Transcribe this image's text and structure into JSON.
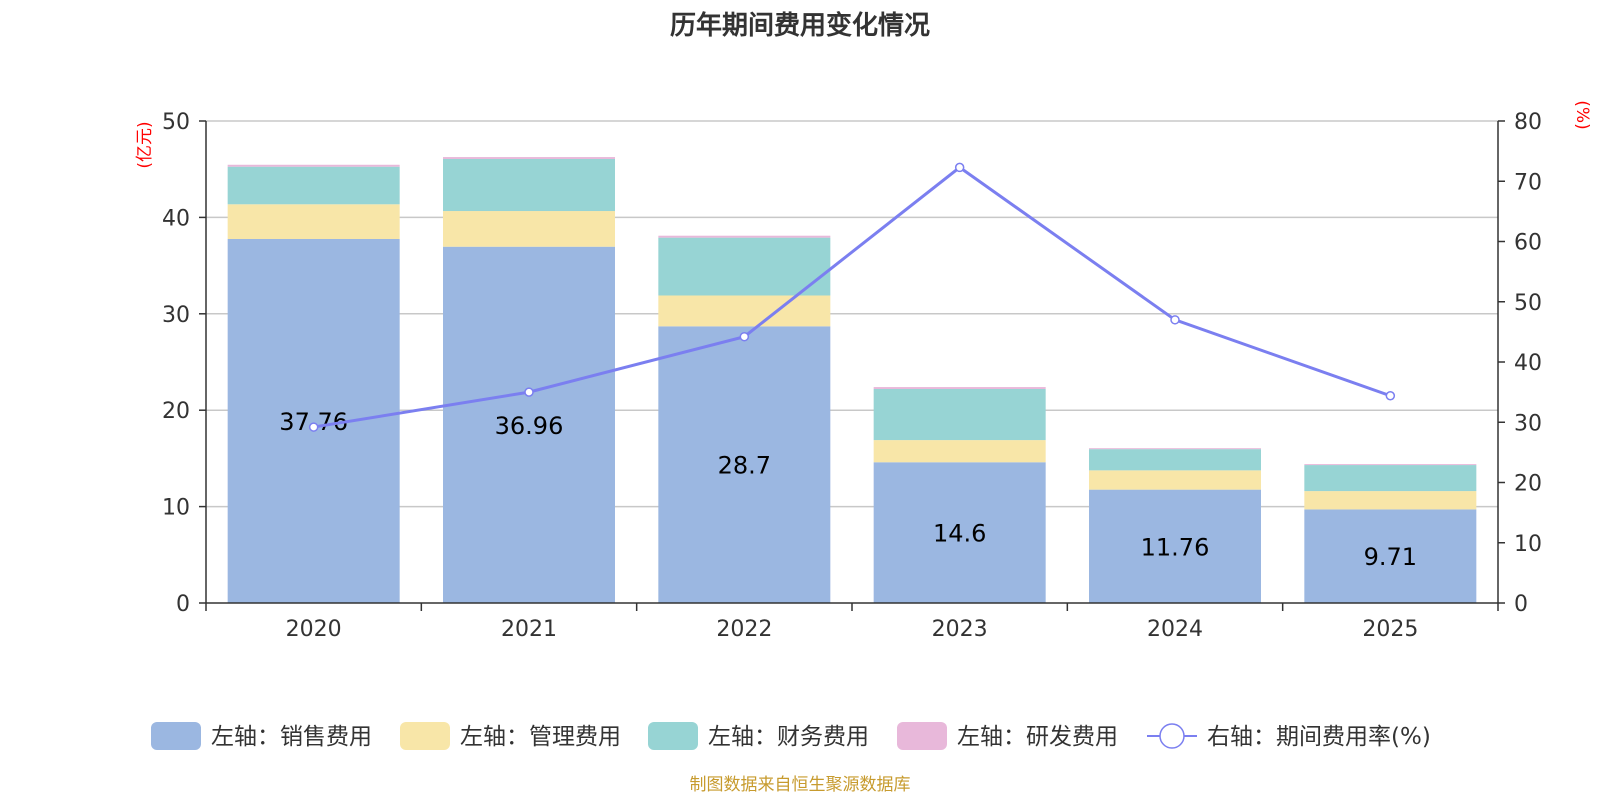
{
  "chart_data": {
    "type": "bar",
    "stacked": true,
    "title": "历年期间费用变化情况",
    "categories": [
      "2020",
      "2021",
      "2022",
      "2023",
      "2024",
      "2025"
    ],
    "left_axis": {
      "unit_label": "(亿元)",
      "ylim": [
        0,
        50
      ],
      "ticks": [
        0,
        10,
        20,
        30,
        40,
        50
      ]
    },
    "right_axis": {
      "unit_label": "(%)",
      "ylim": [
        0,
        80
      ],
      "ticks": [
        0,
        10,
        20,
        30,
        40,
        50,
        60,
        70,
        80
      ]
    },
    "series": [
      {
        "name": "左轴：销售费用",
        "type": "bar",
        "axis": "left",
        "color": "#9bb7e1",
        "values": [
          37.76,
          36.96,
          28.7,
          14.6,
          11.76,
          9.71
        ],
        "labels": [
          "37.76",
          "36.96",
          "28.7",
          "14.6",
          "11.76",
          "9.71"
        ]
      },
      {
        "name": "左轴：管理费用",
        "type": "bar",
        "axis": "left",
        "color": "#f8e6a8",
        "values": [
          3.6,
          3.7,
          3.2,
          2.3,
          2.0,
          1.9
        ]
      },
      {
        "name": "左轴：财务费用",
        "type": "bar",
        "axis": "left",
        "color": "#97d4d4",
        "values": [
          3.9,
          5.4,
          6.0,
          5.3,
          2.2,
          2.7
        ]
      },
      {
        "name": "左轴：研发费用",
        "type": "bar",
        "axis": "left",
        "color": "#e8b8da",
        "values": [
          0.2,
          0.2,
          0.2,
          0.2,
          0.1,
          0.1
        ]
      },
      {
        "name": "右轴：期间费用率(%)",
        "type": "line",
        "axis": "right",
        "color": "#7b7ff0",
        "values": [
          29.2,
          35.0,
          44.2,
          72.3,
          47.0,
          34.4
        ]
      }
    ],
    "legend_position": "bottom",
    "grid": true
  },
  "source": "制图数据来自恒生聚源数据库"
}
